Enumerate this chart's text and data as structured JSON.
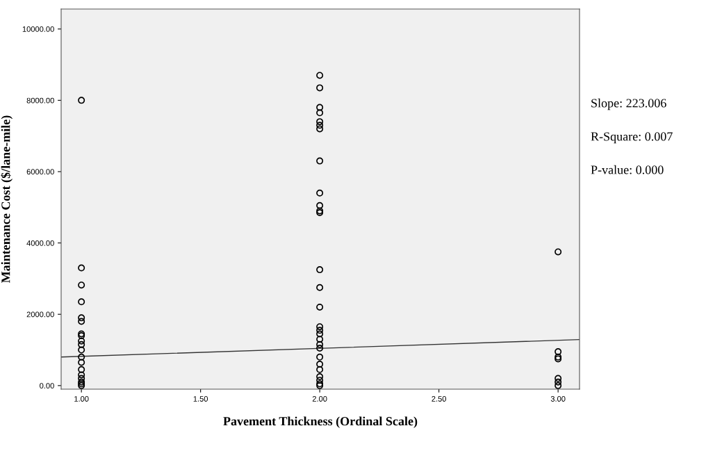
{
  "chart_data": {
    "type": "scatter",
    "xlabel": "Pavement Thickness (Ordinal Scale)",
    "ylabel": "Maintenance Cost ($/lane-mile)",
    "xlim": [
      0.915,
      3.09
    ],
    "ylim": [
      -100,
      10560
    ],
    "xticks": [
      {
        "value": 1,
        "label": "1.00"
      },
      {
        "value": 1.5,
        "label": "1.50"
      },
      {
        "value": 2,
        "label": "2.00"
      },
      {
        "value": 2.5,
        "label": "2.50"
      },
      {
        "value": 3,
        "label": "3.00"
      }
    ],
    "yticks": [
      {
        "value": 0,
        "label": "0.00"
      },
      {
        "value": 2000,
        "label": "2000.00"
      },
      {
        "value": 4000,
        "label": "4000.00"
      },
      {
        "value": 6000,
        "label": "6000.00"
      },
      {
        "value": 8000,
        "label": "8000.00"
      },
      {
        "value": 10000,
        "label": "10000.00"
      }
    ],
    "grid": false,
    "legend": false,
    "series": [
      {
        "marker": "circle",
        "color": "#000000",
        "x": [
          1,
          1,
          1,
          1,
          1,
          1,
          1,
          1,
          1,
          1,
          1,
          1,
          1,
          1,
          1,
          1,
          1,
          1,
          1
        ],
        "values": [
          8000,
          3300,
          2820,
          2350,
          1900,
          1800,
          1450,
          1400,
          1250,
          1150,
          1000,
          800,
          650,
          450,
          300,
          200,
          100,
          50,
          0
        ]
      },
      {
        "marker": "circle",
        "color": "#000000",
        "x": [
          2,
          2,
          2,
          2,
          2,
          2,
          2,
          2,
          2,
          2,
          2,
          2,
          2,
          2,
          2,
          2,
          2,
          2,
          2,
          2,
          2,
          2,
          2,
          2,
          2,
          2,
          2,
          2
        ],
        "values": [
          8700,
          8350,
          7800,
          7650,
          7400,
          7300,
          7200,
          6300,
          5400,
          5050,
          4900,
          4850,
          3250,
          2750,
          2200,
          1650,
          1550,
          1450,
          1300,
          1150,
          1050,
          800,
          600,
          450,
          250,
          150,
          50,
          0
        ]
      },
      {
        "marker": "circle",
        "color": "#000000",
        "x": [
          3,
          3,
          3,
          3,
          3,
          3,
          3
        ],
        "values": [
          3750,
          950,
          800,
          750,
          200,
          100,
          0
        ]
      },
      {
        "type": "line",
        "color": "#333333",
        "x": [
          0.915,
          3.09
        ],
        "values": [
          800,
          1290
        ]
      }
    ],
    "annotations": [
      "Slope: 223.006",
      "R-Square: 0.007",
      "P-value: 0.000"
    ]
  }
}
